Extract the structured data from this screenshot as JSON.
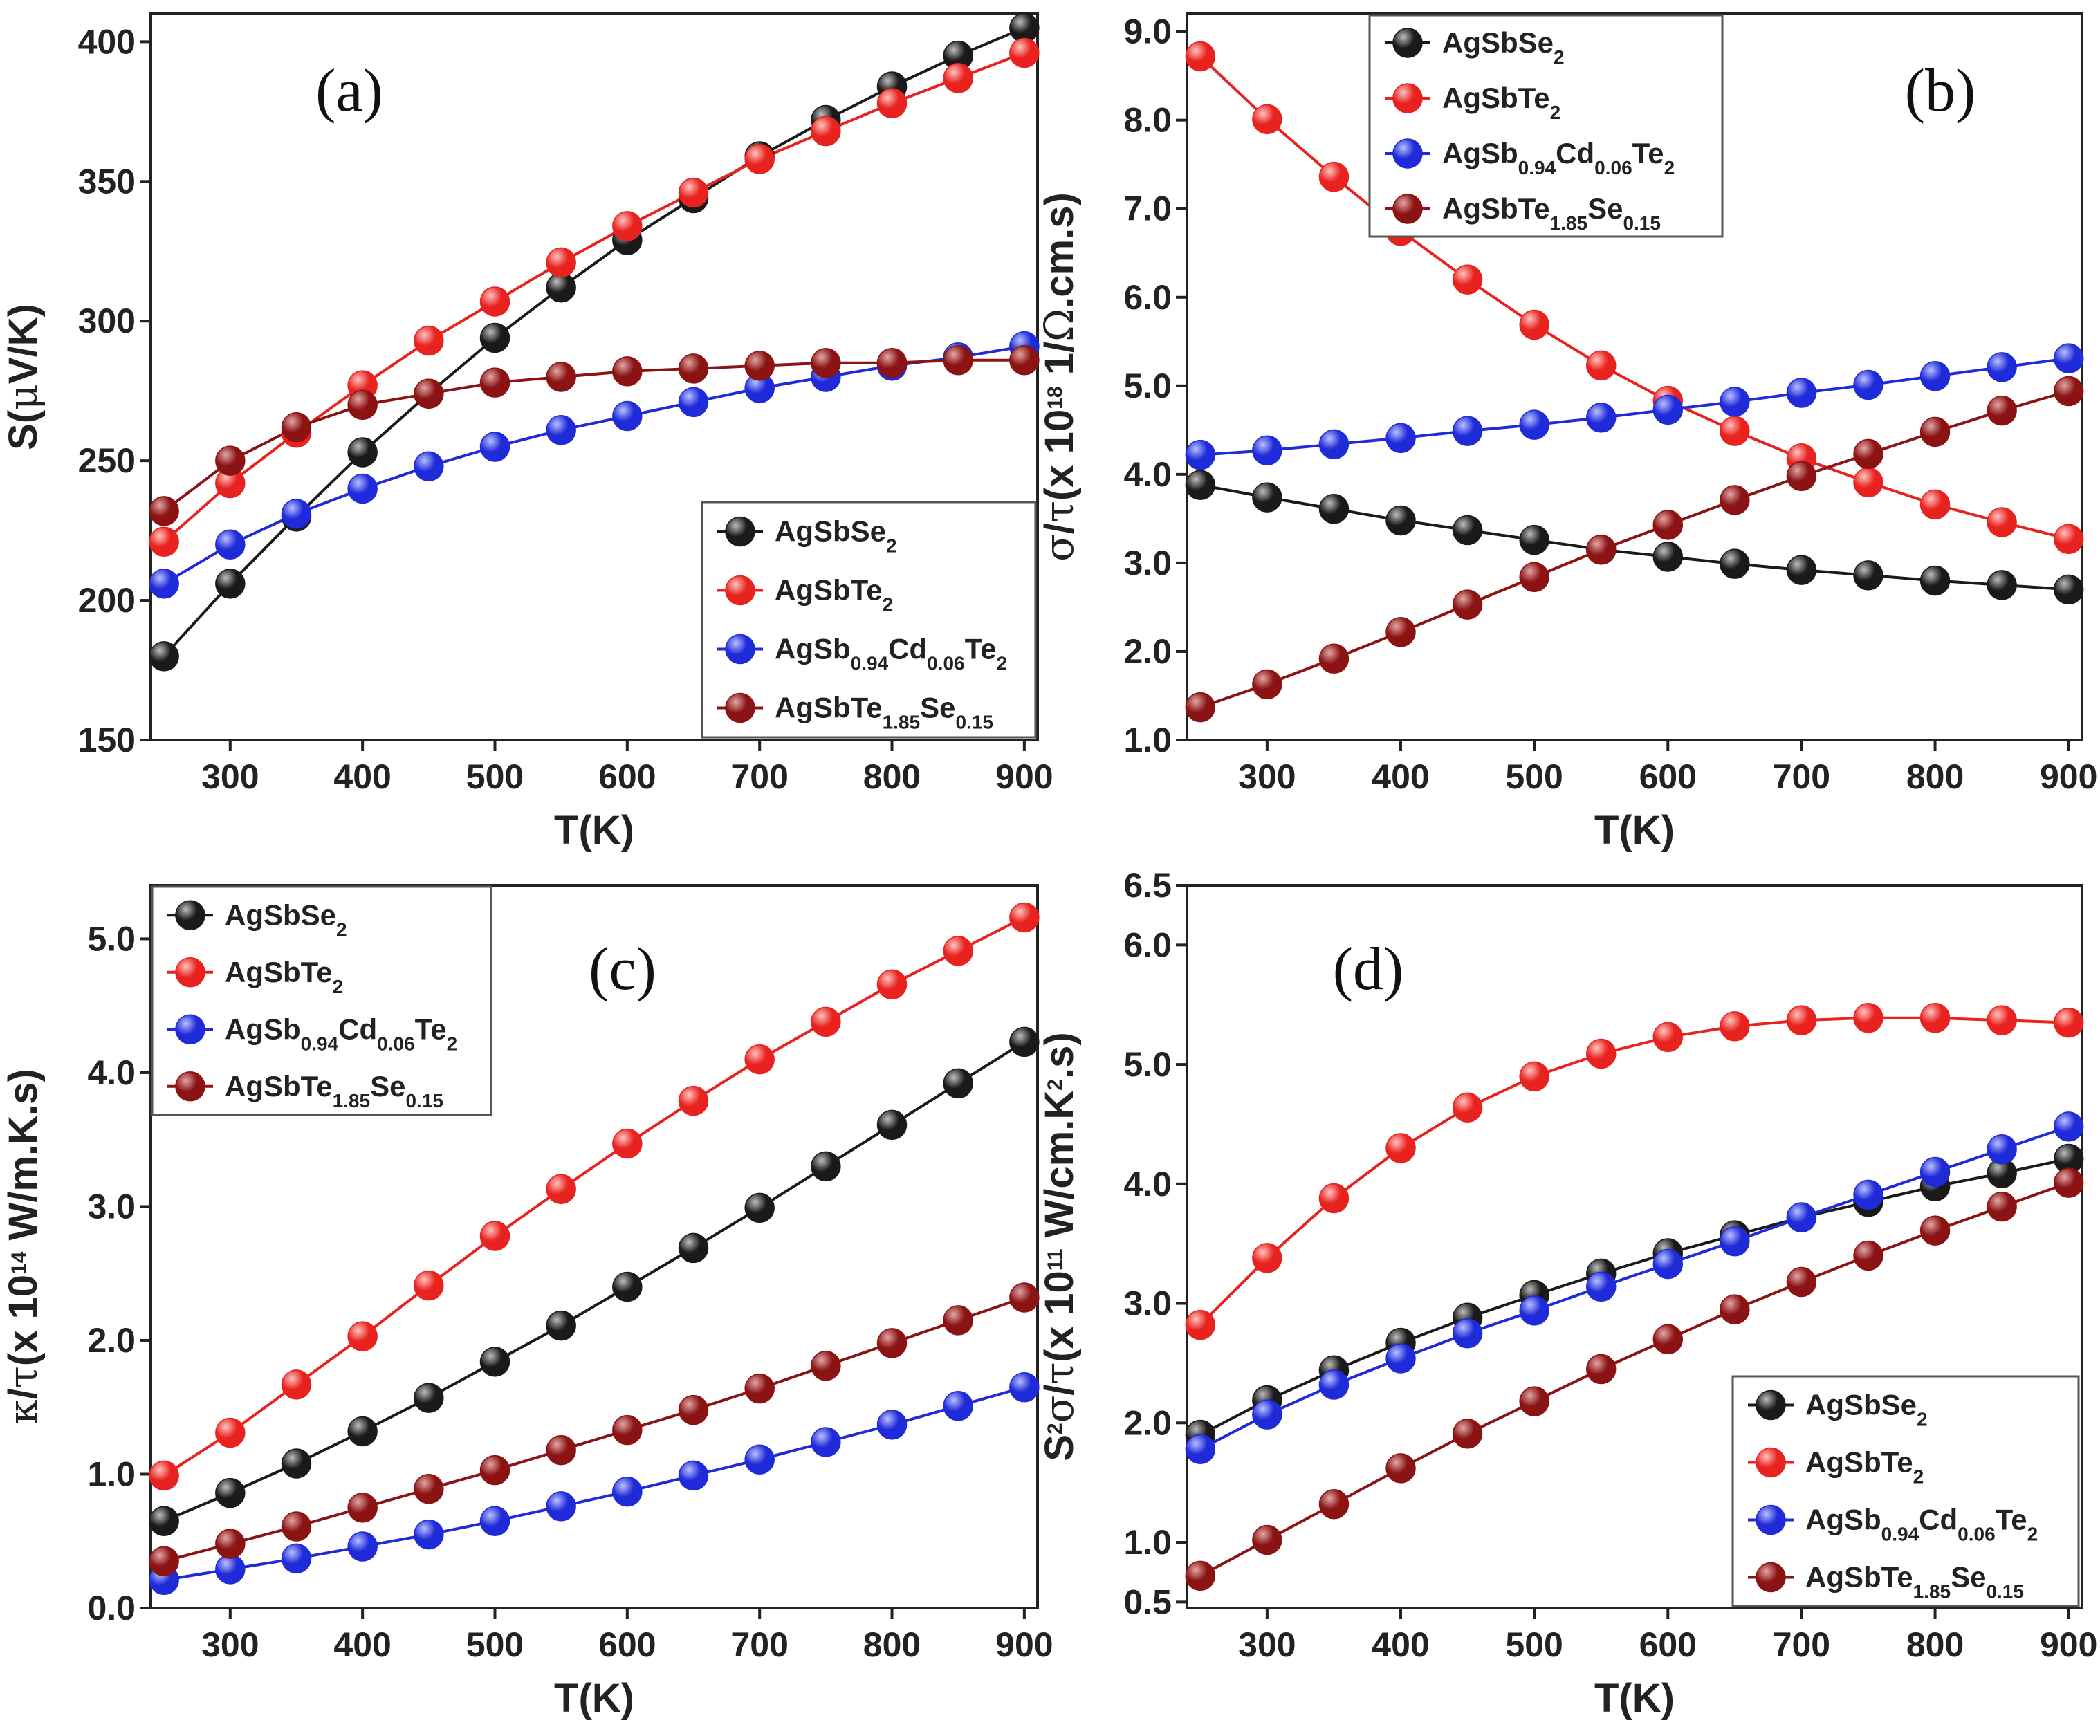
{
  "figure": {
    "background": "#ffffff"
  },
  "series_styles": [
    {
      "name": "AgSbSe2",
      "color": "#1a1a1a",
      "light": "#bdbdbd"
    },
    {
      "name": "AgSbTe2",
      "color": "#e8231f",
      "light": "#ffc2bf"
    },
    {
      "name": "AgSb0.94Cd0.06Te2",
      "color": "#1f2bd8",
      "light": "#b9c0ff"
    },
    {
      "name": "AgSbTe1.85Se0.15",
      "color": "#8b1313",
      "light": "#e2a6a6"
    }
  ],
  "legend_entries": [
    {
      "parts": [
        [
          "AgSbSe",
          ""
        ],
        [
          "2",
          "sub"
        ]
      ]
    },
    {
      "parts": [
        [
          "AgSbTe",
          ""
        ],
        [
          "2",
          "sub"
        ]
      ]
    },
    {
      "parts": [
        [
          "AgSb",
          ""
        ],
        [
          "0.94",
          "sub"
        ],
        [
          "Cd",
          ""
        ],
        [
          "0.06",
          "sub"
        ],
        [
          "Te",
          ""
        ],
        [
          "2",
          "sub"
        ]
      ]
    },
    {
      "parts": [
        [
          "AgSbTe",
          ""
        ],
        [
          "1.85",
          "sub"
        ],
        [
          "Se",
          ""
        ],
        [
          "0.15",
          "sub"
        ]
      ]
    }
  ],
  "chart_data": [
    {
      "panel": "(a)",
      "type": "line",
      "title": "",
      "xlabel": "T(K)",
      "ylabel_parts": [
        [
          "S(",
          ""
        ],
        [
          "μ",
          "greek"
        ],
        [
          "V/K)",
          ""
        ]
      ],
      "xlim": [
        240,
        910
      ],
      "ylim": [
        150,
        410
      ],
      "xticks": [
        300,
        400,
        500,
        600,
        700,
        800,
        900
      ],
      "yticks": [
        150,
        200,
        250,
        300,
        350,
        400
      ],
      "ytick_labels": [
        "150",
        "200",
        "250",
        "300",
        "350",
        "400"
      ],
      "legend_position": "lower-right",
      "x": [
        250,
        300,
        350,
        400,
        450,
        500,
        550,
        600,
        650,
        700,
        750,
        800,
        850,
        900
      ],
      "series": [
        {
          "name": "AgSbSe2",
          "values": [
            180,
            206,
            230,
            253,
            274,
            294,
            312,
            329,
            344,
            359,
            372,
            384,
            395,
            405
          ]
        },
        {
          "name": "AgSbTe2",
          "values": [
            221,
            242,
            260,
            277,
            293,
            307,
            321,
            334,
            346,
            358,
            368,
            378,
            387,
            396
          ]
        },
        {
          "name": "AgSb0.94Cd0.06Te2",
          "values": [
            206,
            220,
            231,
            240,
            248,
            255,
            261,
            266,
            271,
            276,
            280,
            284,
            287,
            291
          ]
        },
        {
          "name": "AgSbTe1.85Se0.15",
          "values": [
            232,
            250,
            262,
            270,
            274,
            278,
            280,
            282,
            283,
            284,
            285,
            285,
            286,
            286
          ]
        }
      ]
    },
    {
      "panel": "(b)",
      "type": "line",
      "title": "",
      "xlabel": "T(K)",
      "ylabel_parts": [
        [
          "σ",
          "greek"
        ],
        [
          "/",
          ""
        ],
        [
          "τ",
          "greek"
        ],
        [
          "(x 10",
          ""
        ],
        [
          "18",
          "sup"
        ],
        [
          " 1/",
          ""
        ],
        [
          "Ω",
          "greek"
        ],
        [
          ".cm.s)",
          ""
        ]
      ],
      "xlim": [
        240,
        910
      ],
      "ylim": [
        1.0,
        9.2
      ],
      "xticks": [
        300,
        400,
        500,
        600,
        700,
        800,
        900
      ],
      "yticks": [
        1.0,
        2.0,
        3.0,
        4.0,
        5.0,
        6.0,
        7.0,
        8.0,
        9.0
      ],
      "ytick_labels": [
        "1.0",
        "2.0",
        "3.0",
        "4.0",
        "5.0",
        "6.0",
        "7.0",
        "8.0",
        "9.0"
      ],
      "legend_position": "top-center",
      "x": [
        250,
        300,
        350,
        400,
        450,
        500,
        550,
        600,
        650,
        700,
        750,
        800,
        850,
        900
      ],
      "series": [
        {
          "name": "AgSbSe2",
          "values": [
            3.88,
            3.74,
            3.61,
            3.48,
            3.37,
            3.26,
            3.15,
            3.07,
            2.99,
            2.92,
            2.86,
            2.8,
            2.75,
            2.7
          ]
        },
        {
          "name": "AgSbTe2",
          "values": [
            8.72,
            8.01,
            7.36,
            6.75,
            6.2,
            5.69,
            5.23,
            4.83,
            4.49,
            4.18,
            3.91,
            3.66,
            3.46,
            3.27
          ]
        },
        {
          "name": "AgSb0.94Cd0.06Te2",
          "values": [
            4.22,
            4.27,
            4.34,
            4.41,
            4.49,
            4.56,
            4.64,
            4.73,
            4.82,
            4.92,
            5.01,
            5.11,
            5.21,
            5.31
          ]
        },
        {
          "name": "AgSbTe1.85Se0.15",
          "values": [
            1.37,
            1.63,
            1.92,
            2.22,
            2.53,
            2.84,
            3.15,
            3.43,
            3.71,
            3.98,
            4.23,
            4.48,
            4.72,
            4.94
          ]
        }
      ]
    },
    {
      "panel": "(c)",
      "type": "line",
      "title": "",
      "xlabel": "T(K)",
      "ylabel_parts": [
        [
          "κ",
          "greek"
        ],
        [
          "/",
          ""
        ],
        [
          "τ",
          "greek"
        ],
        [
          "(x 10",
          ""
        ],
        [
          "14",
          "sup"
        ],
        [
          " W/m.K.s)",
          ""
        ]
      ],
      "xlim": [
        240,
        910
      ],
      "ylim": [
        0.0,
        5.4
      ],
      "xticks": [
        300,
        400,
        500,
        600,
        700,
        800,
        900
      ],
      "yticks": [
        0.0,
        1.0,
        2.0,
        3.0,
        4.0,
        5.0
      ],
      "ytick_labels": [
        "0.0",
        "1.0",
        "2.0",
        "3.0",
        "4.0",
        "5.0"
      ],
      "legend_position": "top-left",
      "x": [
        250,
        300,
        350,
        400,
        450,
        500,
        550,
        600,
        650,
        700,
        750,
        800,
        850,
        900
      ],
      "series": [
        {
          "name": "AgSbSe2",
          "values": [
            0.65,
            0.86,
            1.08,
            1.32,
            1.57,
            1.84,
            2.11,
            2.4,
            2.69,
            2.99,
            3.3,
            3.61,
            3.92,
            4.23
          ]
        },
        {
          "name": "AgSbTe2",
          "values": [
            0.99,
            1.31,
            1.67,
            2.03,
            2.41,
            2.78,
            3.13,
            3.47,
            3.79,
            4.1,
            4.38,
            4.66,
            4.91,
            5.16
          ]
        },
        {
          "name": "AgSb0.94Cd0.06Te2",
          "values": [
            0.21,
            0.29,
            0.37,
            0.46,
            0.55,
            0.65,
            0.76,
            0.87,
            0.99,
            1.11,
            1.24,
            1.37,
            1.51,
            1.65
          ]
        },
        {
          "name": "AgSbTe1.85Se0.15",
          "values": [
            0.35,
            0.48,
            0.61,
            0.75,
            0.89,
            1.03,
            1.18,
            1.33,
            1.48,
            1.64,
            1.81,
            1.98,
            2.15,
            2.32
          ]
        }
      ]
    },
    {
      "panel": "(d)",
      "type": "line",
      "title": "",
      "xlabel": "T(K)",
      "ylabel_parts": [
        [
          "S",
          ""
        ],
        [
          "2",
          "sup"
        ],
        [
          "σ",
          "greek"
        ],
        [
          "/",
          ""
        ],
        [
          "τ",
          "greek"
        ],
        [
          "(x 10",
          ""
        ],
        [
          "11",
          "sup"
        ],
        [
          " W/cm.K",
          ""
        ],
        [
          "2",
          "sup"
        ],
        [
          ".s)",
          ""
        ]
      ],
      "xlim": [
        240,
        910
      ],
      "ylim": [
        0.45,
        6.5
      ],
      "xticks": [
        300,
        400,
        500,
        600,
        700,
        800,
        900
      ],
      "yticks": [
        0.5,
        1.0,
        2.0,
        3.0,
        4.0,
        5.0,
        6.0,
        6.5
      ],
      "ytick_labels": [
        "0.5",
        "1.0",
        "2.0",
        "3.0",
        "4.0",
        "5.0",
        "6.0",
        "6.5"
      ],
      "legend_position": "lower-right",
      "x": [
        250,
        300,
        350,
        400,
        450,
        500,
        550,
        600,
        650,
        700,
        750,
        800,
        850,
        900
      ],
      "series": [
        {
          "name": "AgSbSe2",
          "values": [
            1.9,
            2.19,
            2.44,
            2.67,
            2.88,
            3.07,
            3.25,
            3.42,
            3.57,
            3.72,
            3.85,
            3.98,
            4.09,
            4.21
          ]
        },
        {
          "name": "AgSbTe2",
          "values": [
            2.82,
            3.38,
            3.88,
            4.3,
            4.64,
            4.9,
            5.09,
            5.23,
            5.32,
            5.37,
            5.39,
            5.39,
            5.37,
            5.35
          ]
        },
        {
          "name": "AgSb0.94Cd0.06Te2",
          "values": [
            1.78,
            2.07,
            2.32,
            2.54,
            2.75,
            2.94,
            3.14,
            3.33,
            3.52,
            3.72,
            3.91,
            4.1,
            4.29,
            4.48
          ]
        },
        {
          "name": "AgSbTe1.85Se0.15",
          "values": [
            0.72,
            1.02,
            1.32,
            1.62,
            1.91,
            2.18,
            2.45,
            2.7,
            2.95,
            3.18,
            3.4,
            3.61,
            3.81,
            4.01
          ]
        }
      ]
    }
  ]
}
